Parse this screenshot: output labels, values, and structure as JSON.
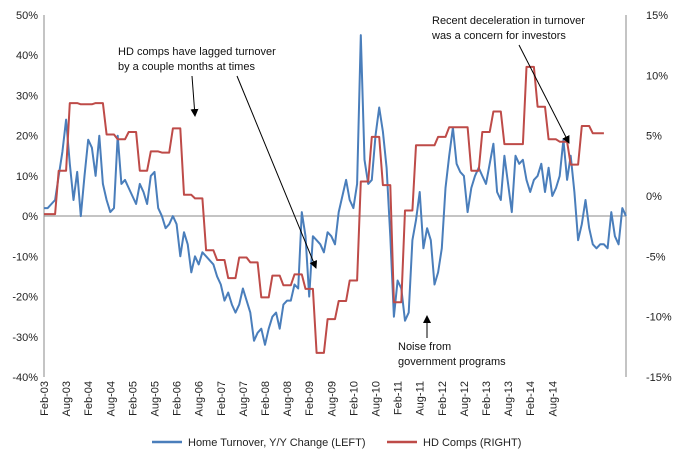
{
  "chart_data": {
    "type": "line",
    "title": "",
    "xlabel": "",
    "ylabel_left": "",
    "ylabel_right": "",
    "x_tick_labels": [
      "Feb-03",
      "Aug-03",
      "Feb-04",
      "Aug-04",
      "Feb-05",
      "Aug-05",
      "Feb-06",
      "Aug-06",
      "Feb-07",
      "Aug-07",
      "Feb-08",
      "Aug-08",
      "Feb-09",
      "Aug-09",
      "Feb-10",
      "Aug-10",
      "Feb-11",
      "Aug-11",
      "Feb-12",
      "Aug-12",
      "Feb-13",
      "Aug-13",
      "Feb-14",
      "Aug-14"
    ],
    "left_axis": {
      "min": -40,
      "max": 50,
      "step": 10,
      "tick_labels": [
        "50%",
        "40%",
        "30%",
        "20%",
        "10%",
        "0%",
        "-10%",
        "-20%",
        "-30%",
        "-40%"
      ]
    },
    "right_axis": {
      "min": -15,
      "max": 15,
      "step": 5,
      "tick_labels": [
        "15%",
        "10%",
        "5%",
        "0%",
        "-5%",
        "-10%",
        "-15%"
      ]
    },
    "grid": false,
    "legend_position": "bottom",
    "colors": {
      "turnover": "#4a7ebb",
      "hd_comps": "#be4b48"
    },
    "series": [
      {
        "name": "Home Turnover, Y/Y Change (LEFT)",
        "axis": "left",
        "color": "#4a7ebb",
        "values": [
          2,
          2,
          3,
          4,
          10,
          16,
          24,
          13,
          4,
          11,
          0,
          10,
          19,
          17,
          10,
          20,
          8,
          4,
          1,
          2,
          20,
          8,
          9,
          7,
          5,
          3,
          8,
          6,
          3,
          10,
          11,
          2,
          0,
          -3,
          -2,
          0,
          -2,
          -10,
          -4,
          -7,
          -14,
          -10,
          -12,
          -9,
          -10,
          -11,
          -12,
          -15,
          -17,
          -21,
          -19,
          -22,
          -24,
          -22,
          -18,
          -21,
          -24,
          -31,
          -29,
          -28,
          -32,
          -28,
          -25,
          -24,
          -28,
          -22,
          -21,
          -21,
          -17,
          -18,
          1,
          -5,
          -20,
          -5,
          -6,
          -7,
          -9,
          -4,
          -5,
          -7,
          1,
          5,
          9,
          4,
          2,
          8,
          45,
          14,
          8,
          9,
          20,
          27,
          21,
          12,
          -5,
          -25,
          -16,
          -18,
          -26,
          -24,
          -6,
          -1,
          6,
          -8,
          -3,
          -6,
          -17,
          -14,
          -8,
          7,
          15,
          22,
          13,
          11,
          10,
          1,
          7,
          10,
          12,
          10,
          8,
          13,
          18,
          6,
          4,
          15,
          8,
          1,
          15,
          13,
          14,
          9,
          6,
          9,
          10,
          13,
          6,
          12,
          5,
          7,
          10,
          19,
          9,
          15,
          6,
          -6,
          -2,
          4,
          -3,
          -7,
          -8,
          -7,
          -7,
          -8,
          1,
          -5,
          -7,
          2,
          0
        ]
      },
      {
        "name": "HD Comps (RIGHT)",
        "axis": "right",
        "color": "#be4b48",
        "values": [
          -1.5,
          -1.5,
          -1.5,
          -1.5,
          2.1,
          2.1,
          2.1,
          7.7,
          7.7,
          7.7,
          7.6,
          7.6,
          7.6,
          7.6,
          7.7,
          7.7,
          7.7,
          5.1,
          5.1,
          5.1,
          4.7,
          4.7,
          4.7,
          5.3,
          5.3,
          5.3,
          2.1,
          2.1,
          2.1,
          3.7,
          3.7,
          3.7,
          3.6,
          3.6,
          3.6,
          5.6,
          5.6,
          5.6,
          0.1,
          0.1,
          0.1,
          -0.2,
          -0.2,
          -0.2,
          -4.5,
          -4.5,
          -4.5,
          -5.3,
          -5.3,
          -5.3,
          -6.8,
          -6.8,
          -6.8,
          -5.1,
          -5.1,
          -5.1,
          -5.5,
          -5.5,
          -5.5,
          -8.4,
          -8.4,
          -8.4,
          -6.6,
          -6.6,
          -6.6,
          -7.4,
          -7.4,
          -7.4,
          -6.5,
          -6.5,
          -6.5,
          -7.7,
          -7.7,
          -7.7,
          -13,
          -13,
          -13,
          -10.2,
          -10.2,
          -10.2,
          -8.7,
          -8.7,
          -8.7,
          -7,
          -7,
          -7,
          1.2,
          1.2,
          1.2,
          4.9,
          4.9,
          4.9,
          0.9,
          0.9,
          0.9,
          -8.8,
          -8.8,
          -8.8,
          -1.2,
          -1.2,
          -1.2,
          4.2,
          4.2,
          4.2,
          4.2,
          4.2,
          4.2,
          4.9,
          4.9,
          4.9,
          5.7,
          5.7,
          5.7,
          5.7,
          5.7,
          5.7,
          2.1,
          2.1,
          2.1,
          5.3,
          5.3,
          5.3,
          7,
          7,
          7,
          4.3,
          4.3,
          4.3,
          4.3,
          4.3,
          4.3,
          10.7,
          10.7,
          10.7,
          7.4,
          7.4,
          7.4,
          4.7,
          4.7,
          4.7,
          4.5,
          4.5,
          4.5,
          2.6,
          2.6,
          2.6,
          5.8,
          5.8,
          5.8,
          5.2,
          5.2,
          5.2,
          5.2
        ]
      }
    ],
    "annotations": [
      {
        "id": "lag",
        "lines": [
          "HD comps have lagged turnover",
          "by a couple months at times"
        ]
      },
      {
        "id": "recent",
        "lines": [
          "Recent deceleration in turnover",
          "was a concern for investors"
        ]
      },
      {
        "id": "noise",
        "lines": [
          "Noise from",
          "government programs"
        ]
      }
    ]
  }
}
